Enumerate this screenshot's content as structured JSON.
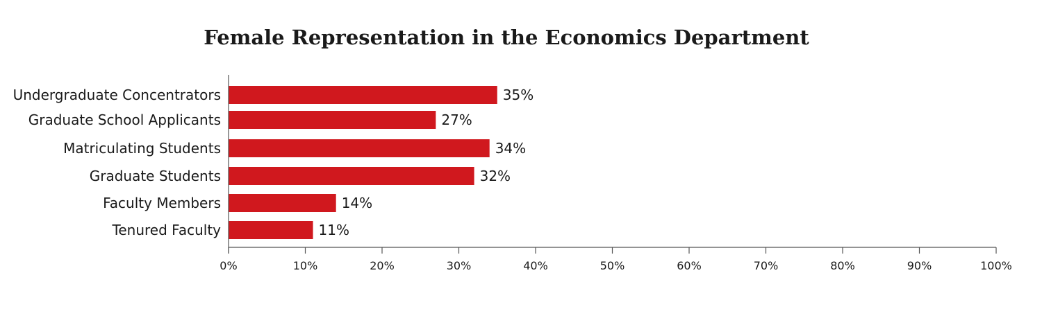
{
  "chart_data": {
    "type": "bar",
    "orientation": "horizontal",
    "title": "Female Representation in the Economics Department",
    "categories": [
      "Undergraduate Concentrators",
      "Graduate School Applicants",
      "Matriculating Students",
      "Graduate Students",
      "Faculty Members",
      "Tenured Faculty"
    ],
    "values": [
      35,
      27,
      34,
      32,
      14,
      11
    ],
    "value_labels": [
      "35%",
      "27%",
      "34%",
      "32%",
      "14%",
      "11%"
    ],
    "xlim": [
      0,
      100
    ],
    "x_ticks": [
      0,
      10,
      20,
      30,
      40,
      50,
      60,
      70,
      80,
      90,
      100
    ],
    "x_tick_labels": [
      "0%",
      "10%",
      "20%",
      "30%",
      "40%",
      "50%",
      "60%",
      "70%",
      "80%",
      "90%",
      "100%"
    ],
    "xlabel": "",
    "ylabel": "",
    "grid": false,
    "bar_color": "#d0181e"
  }
}
